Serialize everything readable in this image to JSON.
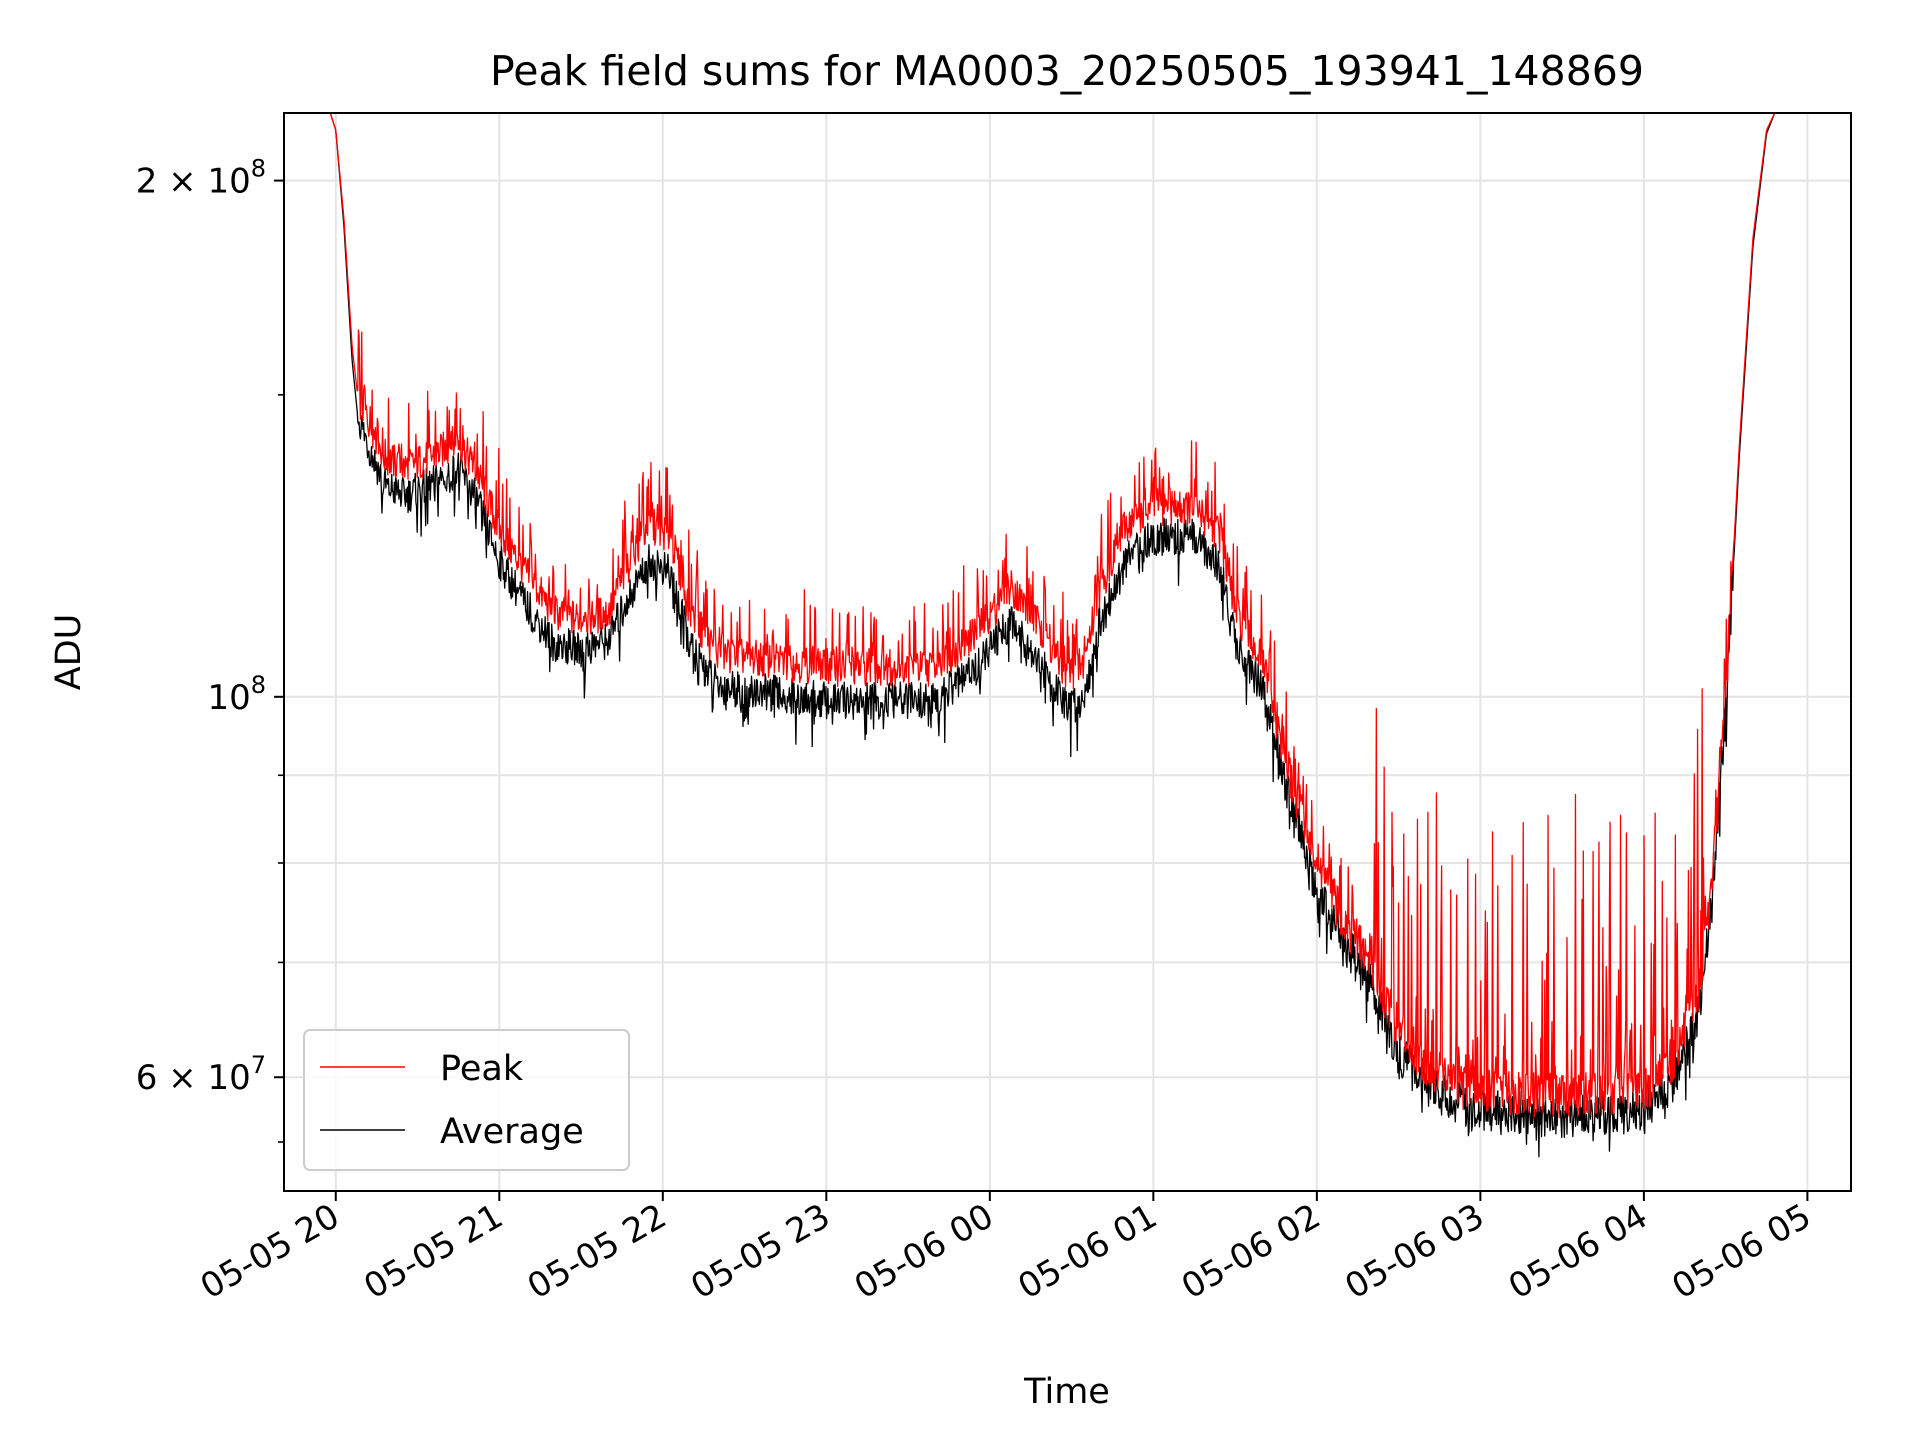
{
  "chart_data": {
    "type": "line",
    "title": "Peak field sums for MA0003_20250505_193941_148869",
    "xlabel": "Time",
    "ylabel": "ADU",
    "yscale": "log",
    "xlim": [
      "2025-05-05 19:41",
      "2025-05-06 05:16"
    ],
    "ylim": [
      51500000,
      219000000
    ],
    "grid": true,
    "legend_position": "lower-left",
    "x_ticks": [
      {
        "t": "2025-05-05 20:00",
        "label": "05-05 20"
      },
      {
        "t": "2025-05-05 21:00",
        "label": "05-05 21"
      },
      {
        "t": "2025-05-05 22:00",
        "label": "05-05 22"
      },
      {
        "t": "2025-05-05 23:00",
        "label": "05-05 23"
      },
      {
        "t": "2025-05-06 00:00",
        "label": "05-06 00"
      },
      {
        "t": "2025-05-06 01:00",
        "label": "05-06 01"
      },
      {
        "t": "2025-05-06 02:00",
        "label": "05-06 02"
      },
      {
        "t": "2025-05-06 03:00",
        "label": "05-06 03"
      },
      {
        "t": "2025-05-06 04:00",
        "label": "05-06 04"
      },
      {
        "t": "2025-05-06 05:00",
        "label": "05-06 05"
      }
    ],
    "y_major_ticks": [
      {
        "value": 60000000,
        "mant": "6",
        "exp": "7"
      },
      {
        "value": 100000000,
        "mant": "",
        "exp": "8"
      },
      {
        "value": 200000000,
        "mant": "2",
        "exp": "8"
      }
    ],
    "y_minor_ticks": [
      70000000,
      80000000,
      90000000
    ],
    "series": [
      {
        "name": "Peak",
        "color": "#ff0000",
        "points": [
          [
            "2025-05-05 19:41",
            219000000
          ],
          [
            "2025-05-05 19:58",
            219000000
          ],
          [
            "2025-05-05 20:00",
            214000000
          ],
          [
            "2025-05-05 20:03",
            190000000
          ],
          [
            "2025-05-05 20:06",
            160000000
          ],
          [
            "2025-05-05 20:08",
            150000000
          ],
          [
            "2025-05-05 20:12",
            145000000
          ],
          [
            "2025-05-05 20:18",
            138000000
          ],
          [
            "2025-05-05 20:25",
            136000000
          ],
          [
            "2025-05-05 20:35",
            138000000
          ],
          [
            "2025-05-05 20:45",
            141000000
          ],
          [
            "2025-05-05 20:52",
            135000000
          ],
          [
            "2025-05-05 21:00",
            125000000
          ],
          [
            "2025-05-05 21:10",
            118000000
          ],
          [
            "2025-05-05 21:20",
            112000000
          ],
          [
            "2025-05-05 21:30",
            111000000
          ],
          [
            "2025-05-05 21:40",
            112000000
          ],
          [
            "2025-05-05 21:48",
            120000000
          ],
          [
            "2025-05-05 21:55",
            126000000
          ],
          [
            "2025-05-05 22:03",
            124000000
          ],
          [
            "2025-05-05 22:10",
            112000000
          ],
          [
            "2025-05-05 22:20",
            106000000
          ],
          [
            "2025-05-05 22:40",
            105000000
          ],
          [
            "2025-05-05 23:00",
            104000000
          ],
          [
            "2025-05-05 23:20",
            104000000
          ],
          [
            "2025-05-05 23:40",
            104000000
          ],
          [
            "2025-05-05 23:55",
            109000000
          ],
          [
            "2025-05-06 00:08",
            116000000
          ],
          [
            "2025-05-06 00:18",
            110000000
          ],
          [
            "2025-05-06 00:28",
            103000000
          ],
          [
            "2025-05-06 00:34",
            104000000
          ],
          [
            "2025-05-06 00:40",
            115000000
          ],
          [
            "2025-05-06 00:50",
            126000000
          ],
          [
            "2025-05-06 01:00",
            129000000
          ],
          [
            "2025-05-06 01:15",
            129000000
          ],
          [
            "2025-05-06 01:25",
            124000000
          ],
          [
            "2025-05-06 01:30",
            112000000
          ],
          [
            "2025-05-06 01:40",
            105000000
          ],
          [
            "2025-05-06 01:50",
            90000000
          ],
          [
            "2025-05-06 02:00",
            80000000
          ],
          [
            "2025-05-06 02:10",
            74000000
          ],
          [
            "2025-05-06 02:20",
            70000000
          ],
          [
            "2025-05-06 02:30",
            64000000
          ],
          [
            "2025-05-06 02:40",
            61000000
          ],
          [
            "2025-05-06 02:55",
            59000000
          ],
          [
            "2025-05-06 03:30",
            58500000
          ],
          [
            "2025-05-06 04:00",
            59000000
          ],
          [
            "2025-05-06 04:10",
            61000000
          ],
          [
            "2025-05-06 04:20",
            67000000
          ],
          [
            "2025-05-06 04:25",
            78000000
          ],
          [
            "2025-05-06 04:30",
            100000000
          ],
          [
            "2025-05-06 04:35",
            140000000
          ],
          [
            "2025-05-06 04:40",
            185000000
          ],
          [
            "2025-05-06 04:45",
            214000000
          ],
          [
            "2025-05-06 04:48",
            219000000
          ],
          [
            "2025-05-06 05:16",
            219000000
          ]
        ]
      },
      {
        "name": "Average",
        "color": "#000000",
        "points": [
          [
            "2025-05-05 19:41",
            219000000
          ],
          [
            "2025-05-05 19:58",
            219000000
          ],
          [
            "2025-05-05 20:00",
            214000000
          ],
          [
            "2025-05-05 20:03",
            188000000
          ],
          [
            "2025-05-05 20:06",
            157000000
          ],
          [
            "2025-05-05 20:08",
            146000000
          ],
          [
            "2025-05-05 20:12",
            140000000
          ],
          [
            "2025-05-05 20:18",
            133000000
          ],
          [
            "2025-05-05 20:25",
            131000000
          ],
          [
            "2025-05-05 20:35",
            133000000
          ],
          [
            "2025-05-05 20:45",
            136000000
          ],
          [
            "2025-05-05 20:52",
            130000000
          ],
          [
            "2025-05-05 21:00",
            120000000
          ],
          [
            "2025-05-05 21:10",
            113000000
          ],
          [
            "2025-05-05 21:20",
            107500000
          ],
          [
            "2025-05-05 21:30",
            106500000
          ],
          [
            "2025-05-05 21:40",
            108000000
          ],
          [
            "2025-05-05 21:48",
            115000000
          ],
          [
            "2025-05-05 21:55",
            120000000
          ],
          [
            "2025-05-05 22:03",
            118000000
          ],
          [
            "2025-05-05 22:10",
            107000000
          ],
          [
            "2025-05-05 22:20",
            101500000
          ],
          [
            "2025-05-05 22:40",
            100500000
          ],
          [
            "2025-05-05 23:00",
            99500000
          ],
          [
            "2025-05-05 23:20",
            99500000
          ],
          [
            "2025-05-05 23:40",
            99500000
          ],
          [
            "2025-05-05 23:55",
            104000000
          ],
          [
            "2025-05-06 00:08",
            111000000
          ],
          [
            "2025-05-06 00:18",
            105000000
          ],
          [
            "2025-05-06 00:28",
            98500000
          ],
          [
            "2025-05-06 00:34",
            99500000
          ],
          [
            "2025-05-06 00:40",
            110000000
          ],
          [
            "2025-05-06 00:50",
            120000000
          ],
          [
            "2025-05-06 01:00",
            124000000
          ],
          [
            "2025-05-06 01:15",
            124000000
          ],
          [
            "2025-05-06 01:25",
            119000000
          ],
          [
            "2025-05-06 01:30",
            108000000
          ],
          [
            "2025-05-06 01:40",
            101000000
          ],
          [
            "2025-05-06 01:50",
            87000000
          ],
          [
            "2025-05-06 02:00",
            77000000
          ],
          [
            "2025-05-06 02:10",
            72000000
          ],
          [
            "2025-05-06 02:20",
            68000000
          ],
          [
            "2025-05-06 02:30",
            62000000
          ],
          [
            "2025-05-06 02:40",
            59500000
          ],
          [
            "2025-05-06 02:55",
            57500000
          ],
          [
            "2025-05-06 03:30",
            57000000
          ],
          [
            "2025-05-06 04:00",
            57500000
          ],
          [
            "2025-05-06 04:10",
            59500000
          ],
          [
            "2025-05-06 04:20",
            65000000
          ],
          [
            "2025-05-06 04:25",
            76000000
          ],
          [
            "2025-05-06 04:30",
            98000000
          ],
          [
            "2025-05-06 04:35",
            138000000
          ],
          [
            "2025-05-06 04:40",
            183000000
          ],
          [
            "2025-05-06 04:45",
            213000000
          ],
          [
            "2025-05-06 04:48",
            219000000
          ],
          [
            "2025-05-06 05:16",
            219000000
          ]
        ]
      }
    ]
  }
}
